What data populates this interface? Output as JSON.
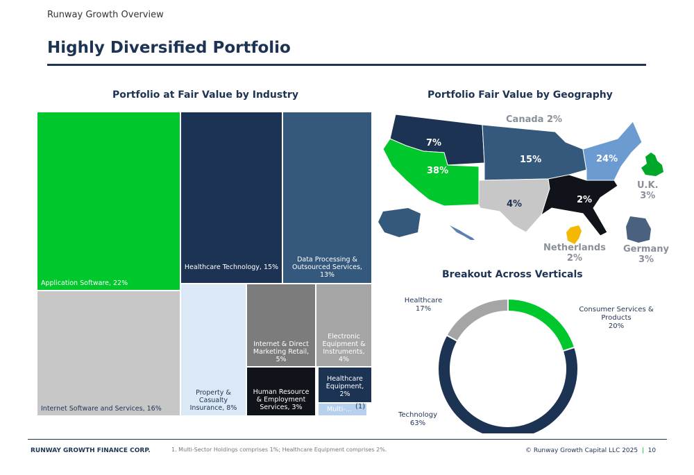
{
  "header": {
    "subheading": "Runway Growth Overview",
    "title": "Highly Diversified Portfolio"
  },
  "industry": {
    "title": "Portfolio at Fair Value by Industry",
    "tiles": [
      {
        "label": "Application Software, 22%",
        "value": 22,
        "color": "#00c72b",
        "text_color": "#ffffff"
      },
      {
        "label": "Healthcare Technology, 15%",
        "value": 15,
        "color": "#1d3353",
        "text_color": "#ffffff"
      },
      {
        "label": "Data Processing & Outsourced Services, 13%",
        "value": 13,
        "color": "#34597d",
        "text_color": "#ffffff"
      },
      {
        "label": "Internet Software and Services, 16%",
        "value": 16,
        "color": "#c7c7c7",
        "text_color": "#1d3353"
      },
      {
        "label": "Property & Casualty Insurance, 8%",
        "value": 8,
        "color": "#dbe8f5",
        "text_color": "#1d3353"
      },
      {
        "label": "Internet & Direct Marketing Retail, 5%",
        "value": 5,
        "color": "#7c7c7c",
        "text_color": "#ffffff"
      },
      {
        "label": "Electronic Equipment & Instruments, 4%",
        "value": 4,
        "color": "#a5a5a5",
        "text_color": "#ffffff"
      },
      {
        "label": "Human Resource & Employment Services, 3%",
        "value": 3,
        "color": "#101319",
        "text_color": "#ffffff"
      },
      {
        "label": "Healthcare Equipment, 2%",
        "value": 2,
        "color": "#1d3353",
        "text_color": "#ffffff"
      },
      {
        "label": "Multi-…",
        "value": 1,
        "color": "#b7d0ee",
        "text_color": "#ffffff"
      }
    ],
    "footnote_marker": "(1)"
  },
  "geography": {
    "title": "Portfolio Fair Value by Geography",
    "regions": [
      {
        "label": "7%",
        "color": "#1d3353"
      },
      {
        "label": "38%",
        "color": "#00c72b"
      },
      {
        "label": "15%",
        "color": "#34597d"
      },
      {
        "label": "24%",
        "color": "#6b9bd1"
      },
      {
        "label": "4%",
        "color": "#c7c7c7"
      },
      {
        "label": "2%",
        "color": "#101319"
      }
    ],
    "countries": [
      {
        "name": "Canada 2%"
      },
      {
        "name": "U.K.",
        "value": "3%",
        "color": "#00a82a"
      },
      {
        "name": "Netherlands",
        "value": "2%",
        "color": "#f5b800"
      },
      {
        "name": "Germany",
        "value": "3%",
        "color": "#4b6180"
      }
    ]
  },
  "chart_data": [
    {
      "type": "treemap",
      "title": "Portfolio at Fair Value by Industry",
      "categories": [
        "Application Software",
        "Healthcare Technology",
        "Data Processing & Outsourced Services",
        "Internet Software and Services",
        "Property & Casualty Insurance",
        "Internet & Direct Marketing Retail",
        "Electronic Equipment & Instruments",
        "Human Resource & Employment Services",
        "Healthcare Equipment",
        "Multi-Sector Holdings"
      ],
      "values": [
        22,
        15,
        13,
        16,
        8,
        5,
        4,
        3,
        2,
        1
      ]
    },
    {
      "type": "pie",
      "title": "Breakout Across Verticals",
      "categories": [
        "Consumer Services & Products",
        "Technology",
        "Healthcare"
      ],
      "values": [
        20,
        63,
        17
      ],
      "colors": [
        "#00c72b",
        "#1d3353",
        "#a5a5a5"
      ],
      "labels": [
        "Consumer Services & Products 20%",
        "Technology 63%",
        "Healthcare 17%"
      ]
    }
  ],
  "verticals": {
    "title": "Breakout Across Verticals",
    "labels": [
      {
        "line1": "Consumer Services &",
        "line2": "Products",
        "line3": "20%"
      },
      {
        "line1": "Technology",
        "line2": "63%"
      },
      {
        "line1": "Healthcare",
        "line2": "17%"
      }
    ]
  },
  "footer": {
    "company": "RUNWAY GROWTH FINANCE CORP.",
    "note": "1.   Multi-Sector Holdings comprises 1%; Healthcare Equipment comprises 2%.",
    "copyright": "© Runway Growth Capital LLC 2025",
    "page": "10"
  }
}
